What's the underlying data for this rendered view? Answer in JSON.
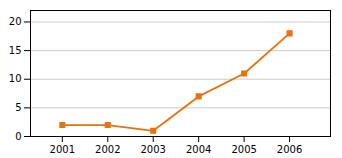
{
  "chart_data": {
    "type": "line",
    "x": [
      2001,
      2002,
      2003,
      2004,
      2005,
      2006
    ],
    "values": [
      2,
      2,
      1,
      7,
      11,
      18
    ],
    "color": "#E8720C",
    "marker": "square",
    "xlim": [
      2000.3,
      2006.9
    ],
    "ylim": [
      0,
      22
    ],
    "xticks": [
      2001,
      2002,
      2003,
      2004,
      2005,
      2006
    ],
    "yticks": [
      0,
      5,
      10,
      15,
      20
    ],
    "grid": "y"
  }
}
